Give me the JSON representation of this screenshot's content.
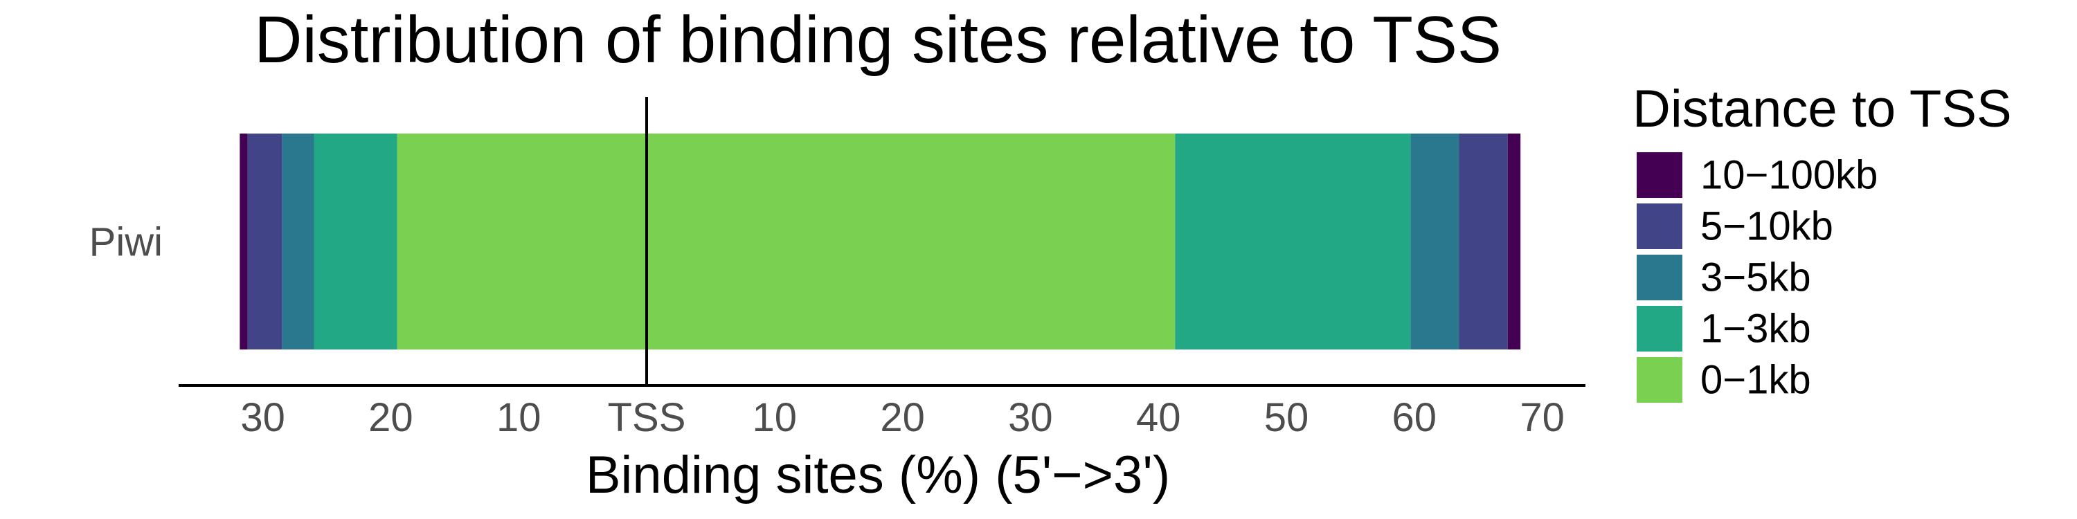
{
  "chart_data": {
    "type": "bar",
    "orientation": "horizontal",
    "stacked": "diverging",
    "title": "Distribution of binding sites relative to TSS",
    "xlabel": "Binding sites (%) (5'−>3')",
    "ylabel": "",
    "categories": [
      "Piwi"
    ],
    "center_label": "TSS",
    "xlim": [
      -37,
      73
    ],
    "x_ticks": [
      {
        "value": -30,
        "label": "30"
      },
      {
        "value": -20,
        "label": "20"
      },
      {
        "value": -10,
        "label": "10"
      },
      {
        "value": 0,
        "label": "TSS"
      },
      {
        "value": 10,
        "label": "10"
      },
      {
        "value": 20,
        "label": "20"
      },
      {
        "value": 30,
        "label": "30"
      },
      {
        "value": 40,
        "label": "40"
      },
      {
        "value": 50,
        "label": "50"
      },
      {
        "value": 60,
        "label": "60"
      },
      {
        "value": 70,
        "label": "70"
      }
    ],
    "series": [
      {
        "name": "0−1kb",
        "color": "#7ad151",
        "upstream": 19.5,
        "downstream": 41.3
      },
      {
        "name": "1−3kb",
        "color": "#22a884",
        "upstream": 6.5,
        "downstream": 18.4
      },
      {
        "name": "3−5kb",
        "color": "#2a788e",
        "upstream": 2.5,
        "downstream": 3.8
      },
      {
        "name": "5−10kb",
        "color": "#414487",
        "upstream": 2.7,
        "downstream": 3.8
      },
      {
        "name": "10−100kb",
        "color": "#440154",
        "upstream": 0.6,
        "downstream": 1.0
      }
    ],
    "legend": {
      "title": "Distance to TSS",
      "position": "right",
      "order": [
        "10−100kb",
        "5−10kb",
        "3−5kb",
        "1−3kb",
        "0−1kb"
      ]
    },
    "grid": false
  }
}
